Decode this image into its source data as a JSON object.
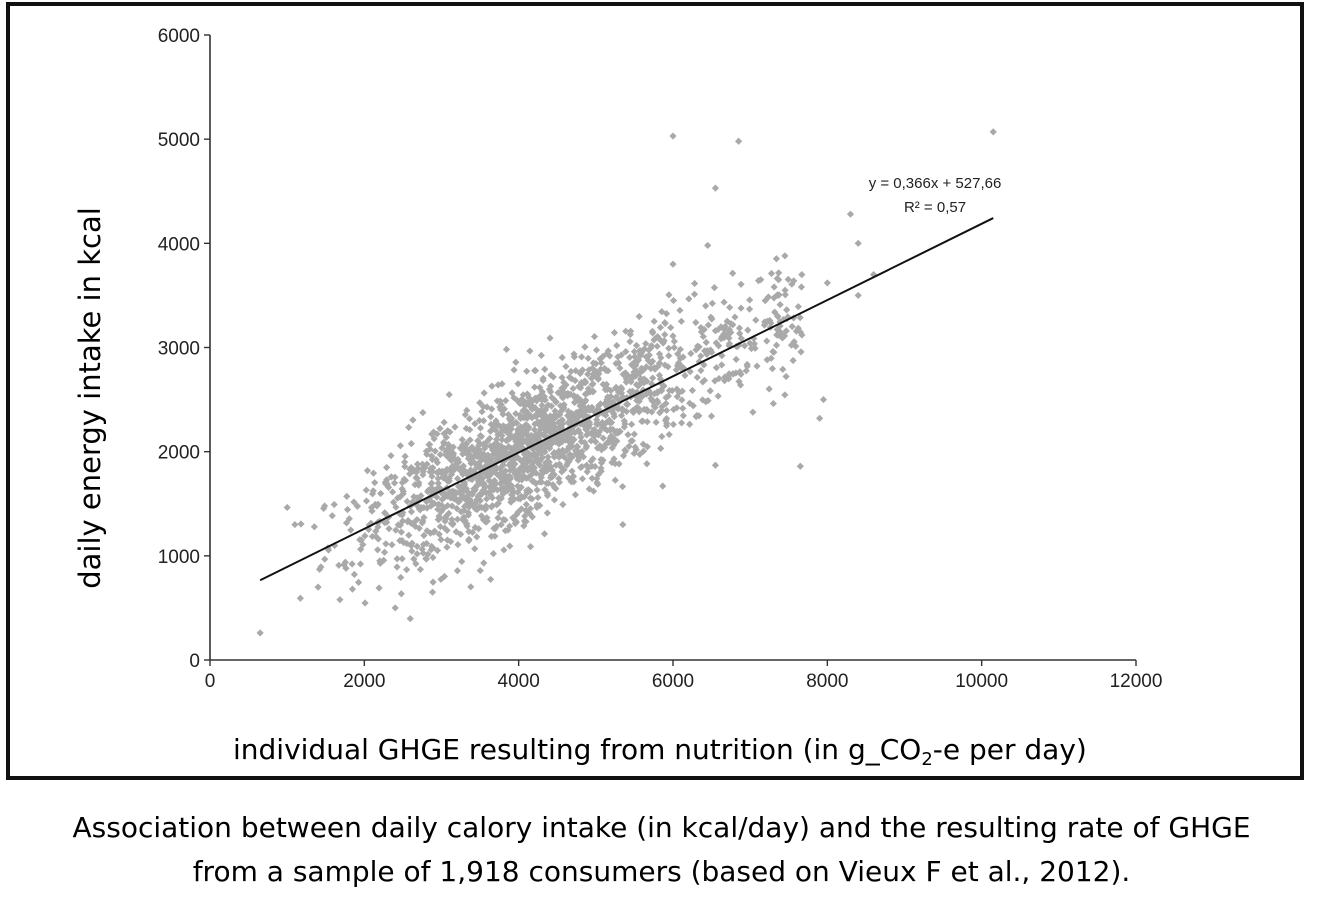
{
  "chart_data": {
    "type": "scatter",
    "title": "",
    "xlabel": "individual GHGE resulting from nutrition (in g_CO",
    "xlabel_sub": "2",
    "xlabel_suffix": "-e per day)",
    "ylabel": "daily energy intake in kcal",
    "xlim": [
      0,
      12000
    ],
    "ylim": [
      0,
      6000
    ],
    "x_ticks": [
      0,
      2000,
      4000,
      6000,
      8000,
      10000,
      12000
    ],
    "y_ticks": [
      0,
      1000,
      2000,
      3000,
      4000,
      5000,
      6000
    ],
    "x_tick_labels": [
      "0",
      "2000",
      "4000",
      "6000",
      "8000",
      "10000",
      "12000"
    ],
    "y_tick_labels": [
      "0",
      "1000",
      "2000",
      "3000",
      "4000",
      "5000",
      "6000"
    ],
    "n_points": 1918,
    "regression": {
      "slope": 0.366,
      "intercept": 527.66,
      "x_range": [
        650,
        10150
      ],
      "equation": "y = 0,366x + 527,66",
      "r_squared": "R² = 0,57"
    },
    "outliers": [
      {
        "x": 650,
        "y": 260
      },
      {
        "x": 1100,
        "y": 1300
      },
      {
        "x": 2400,
        "y": 500
      },
      {
        "x": 6000,
        "y": 5030
      },
      {
        "x": 6850,
        "y": 4980
      },
      {
        "x": 6550,
        "y": 4530
      },
      {
        "x": 10150,
        "y": 5070
      },
      {
        "x": 8300,
        "y": 4280
      },
      {
        "x": 8400,
        "y": 4000
      },
      {
        "x": 8600,
        "y": 3700
      },
      {
        "x": 8400,
        "y": 3500
      },
      {
        "x": 8000,
        "y": 3620
      },
      {
        "x": 7450,
        "y": 3880
      },
      {
        "x": 7900,
        "y": 2320
      },
      {
        "x": 7650,
        "y": 1860
      },
      {
        "x": 6450,
        "y": 3980
      },
      {
        "x": 5350,
        "y": 1300
      },
      {
        "x": 6550,
        "y": 1870
      },
      {
        "x": 6000,
        "y": 3800
      },
      {
        "x": 7950,
        "y": 2500
      }
    ],
    "point_color": "#a9a9a9",
    "line_color": "#111111"
  },
  "caption": {
    "line1": "Association between daily calory intake (in kcal/day) and the resulting rate of GHGE",
    "line2": "from a sample of 1,918 consumers (based on Vieux F et al., 2012)."
  }
}
